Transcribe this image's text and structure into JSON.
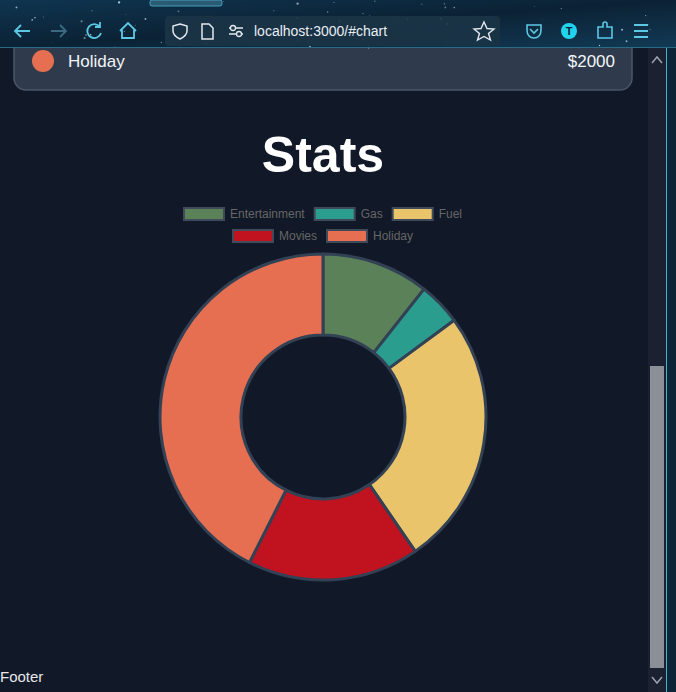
{
  "browser": {
    "url": "localhost:3000/#chart",
    "profile_initial": "T"
  },
  "page": {
    "card": {
      "label": "Holiday",
      "amount": "$2000"
    },
    "footer": "Footer"
  },
  "chart_data": {
    "type": "doughnut",
    "title": "Stats",
    "categories": [
      "Entertainment",
      "Gas",
      "Fuel",
      "Movies",
      "Holiday"
    ],
    "values": [
      500,
      200,
      1200,
      800,
      2000
    ],
    "colors": [
      "#5b8158",
      "#2a9d8f",
      "#e9c46a",
      "#c1121f",
      "#e76f51"
    ],
    "legend": "top"
  }
}
